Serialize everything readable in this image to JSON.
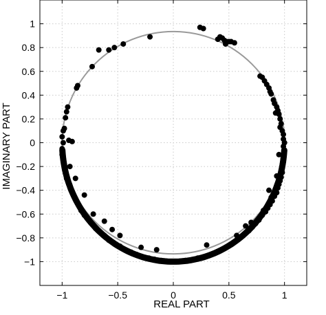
{
  "chart_data": {
    "type": "scatter",
    "title": "",
    "xlabel": "REAL PART",
    "ylabel": "IMAGINARY PART",
    "xlim": [
      -1.2,
      1.2
    ],
    "ylim": [
      -1.2,
      1.2
    ],
    "xticks": [
      -1,
      -0.5,
      0,
      0.5,
      1
    ],
    "xtick_labels": [
      "−1",
      "−0.5",
      "0",
      "0.5",
      "1"
    ],
    "yticks": [
      1,
      0.8,
      0.6,
      0.4,
      0.2,
      0,
      -0.2,
      -0.4,
      -0.6,
      -0.8,
      -1
    ],
    "ytick_labels": [
      "1",
      "0.8",
      "0.6",
      "0.4",
      "0.2",
      "0",
      "−0.2",
      "−0.4",
      "−0.6",
      "−0.8",
      "−1"
    ],
    "grid": true,
    "reference_curve": {
      "shape": "unit circle",
      "center": [
        0,
        0
      ],
      "radius": 1,
      "color": "#999999"
    },
    "marker_color": "#000000",
    "series": [
      {
        "points": [
          [
            0.24,
            0.97
          ],
          [
            0.27,
            0.96
          ],
          [
            0.4,
            0.87
          ],
          [
            0.42,
            0.89
          ],
          [
            0.44,
            0.88
          ],
          [
            0.46,
            0.86
          ],
          [
            0.47,
            0.83
          ],
          [
            0.48,
            0.85
          ],
          [
            0.5,
            0.85
          ],
          [
            0.52,
            0.85
          ],
          [
            0.55,
            0.84
          ],
          [
            0.78,
            0.56
          ],
          [
            0.8,
            0.55
          ],
          [
            0.82,
            0.52
          ],
          [
            0.84,
            0.49
          ],
          [
            0.86,
            0.46
          ],
          [
            0.87,
            0.43
          ],
          [
            0.88,
            0.41
          ],
          [
            0.9,
            0.36
          ],
          [
            0.91,
            0.33
          ],
          [
            0.93,
            0.3
          ],
          [
            0.94,
            0.27
          ],
          [
            0.95,
            0.24
          ],
          [
            0.96,
            0.2
          ],
          [
            0.97,
            0.16
          ],
          [
            0.96,
            0.13
          ],
          [
            0.98,
            0.1
          ],
          [
            0.99,
            0.07
          ],
          [
            0.99,
            0.03
          ],
          [
            1.0,
            0.0
          ],
          [
            0.99,
            -0.03
          ],
          [
            1.0,
            -0.07
          ],
          [
            0.99,
            -0.12
          ],
          [
            0.99,
            -0.16
          ],
          [
            0.98,
            -0.21
          ],
          [
            0.98,
            -0.25
          ],
          [
            0.97,
            -0.29
          ],
          [
            0.96,
            -0.32
          ],
          [
            0.95,
            -0.35
          ],
          [
            0.94,
            -0.38
          ],
          [
            0.93,
            -0.42
          ],
          [
            0.91,
            -0.45
          ],
          [
            0.89,
            -0.49
          ],
          [
            0.87,
            -0.52
          ],
          [
            0.85,
            -0.55
          ],
          [
            0.83,
            -0.58
          ],
          [
            0.8,
            -0.61
          ],
          [
            0.77,
            -0.65
          ],
          [
            0.74,
            -0.68
          ],
          [
            0.71,
            -0.71
          ],
          [
            0.68,
            -0.74
          ],
          [
            0.64,
            -0.77
          ],
          [
            0.6,
            -0.8
          ],
          [
            0.56,
            -0.83
          ],
          [
            0.51,
            -0.86
          ],
          [
            0.47,
            -0.88
          ],
          [
            0.42,
            -0.91
          ],
          [
            0.37,
            -0.93
          ],
          [
            0.32,
            -0.95
          ],
          [
            0.27,
            -0.96
          ],
          [
            0.22,
            -0.97
          ],
          [
            0.16,
            -0.99
          ],
          [
            0.11,
            -0.99
          ],
          [
            0.05,
            -1.0
          ],
          [
            0.0,
            -1.0
          ],
          [
            -0.05,
            -1.0
          ],
          [
            -0.11,
            -0.99
          ],
          [
            -0.17,
            -0.98
          ],
          [
            -0.22,
            -0.97
          ],
          [
            -0.28,
            -0.96
          ],
          [
            -0.33,
            -0.94
          ],
          [
            -0.38,
            -0.92
          ],
          [
            -0.44,
            -0.9
          ],
          [
            -0.48,
            -0.87
          ],
          [
            -0.53,
            -0.85
          ],
          [
            -0.58,
            -0.82
          ],
          [
            -0.62,
            -0.78
          ],
          [
            -0.66,
            -0.75
          ],
          [
            -0.7,
            -0.72
          ],
          [
            -0.73,
            -0.68
          ],
          [
            -0.77,
            -0.64
          ],
          [
            -0.8,
            -0.61
          ],
          [
            -0.83,
            -0.57
          ],
          [
            -0.85,
            -0.53
          ],
          [
            -0.88,
            -0.48
          ],
          [
            -0.9,
            -0.44
          ],
          [
            -0.92,
            -0.4
          ],
          [
            -0.94,
            -0.35
          ],
          [
            -0.96,
            -0.3
          ],
          [
            -0.97,
            -0.25
          ],
          [
            -0.98,
            -0.2
          ],
          [
            -0.99,
            -0.15
          ],
          [
            -1.0,
            -0.1
          ],
          [
            -1.0,
            -0.05
          ],
          [
            -0.99,
            0.0
          ],
          [
            -1.0,
            0.05
          ],
          [
            -0.99,
            0.1
          ],
          [
            -0.98,
            0.12
          ],
          [
            -0.97,
            0.21
          ],
          [
            -0.96,
            0.26
          ],
          [
            -0.95,
            0.3
          ],
          [
            -0.87,
            0.46
          ],
          [
            -0.86,
            0.48
          ],
          [
            -0.91,
            0.01
          ],
          [
            -0.94,
            0.02
          ],
          [
            -0.73,
            0.64
          ],
          [
            -0.67,
            0.78
          ],
          [
            -0.58,
            0.78
          ],
          [
            -0.53,
            0.8
          ],
          [
            -0.45,
            0.83
          ],
          [
            -0.21,
            0.89
          ],
          [
            0.88,
            -0.46
          ],
          [
            0.81,
            -0.57
          ],
          [
            0.7,
            -0.67
          ],
          [
            0.57,
            -0.78
          ],
          [
            -0.15,
            -0.9
          ],
          [
            -0.29,
            -0.88
          ],
          [
            -0.48,
            -0.78
          ],
          [
            -0.62,
            -0.66
          ],
          [
            -0.8,
            -0.44
          ],
          [
            -0.93,
            -0.2
          ],
          [
            0.92,
            0.25
          ],
          [
            0.86,
            -0.4
          ],
          [
            0.3,
            -0.86
          ],
          [
            -0.55,
            -0.73
          ],
          [
            -0.72,
            -0.6
          ],
          [
            -0.88,
            -0.3
          ],
          [
            0.95,
            -0.1
          ],
          [
            0.93,
            -0.28
          ],
          [
            0.65,
            -0.7
          ]
        ]
      }
    ]
  }
}
